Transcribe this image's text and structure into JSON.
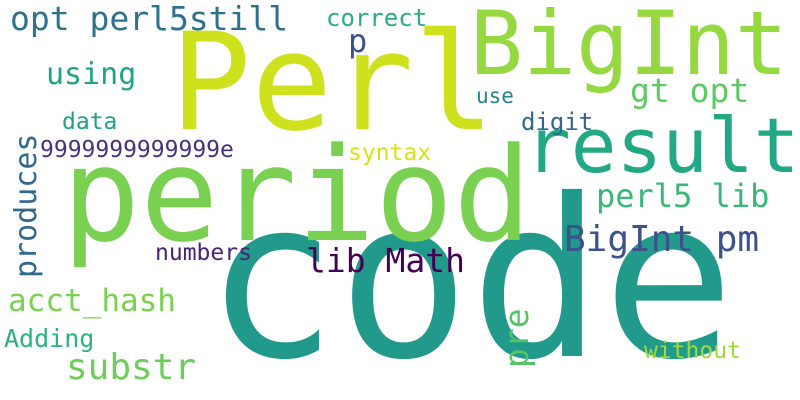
{
  "word_cloud": {
    "words": {
      "code": "code",
      "period": "period",
      "perl": "Perl",
      "bigint": "BigInt",
      "result": "result",
      "opt_perl5still": "opt perl5still",
      "correct": "correct",
      "p": "p",
      "using": "using",
      "gt_opt": "gt opt",
      "use": "use",
      "data": "data",
      "digit": "digit",
      "nines": "9999999999999e",
      "syntax": "syntax",
      "perl5_lib": "perl5 lib",
      "bigint_pm": "BigInt pm",
      "numbers": "numbers",
      "lib_math": "lib Math",
      "acct_hash": "acct_hash",
      "adding": "Adding",
      "without": "without",
      "substr": "substr",
      "produces": "produces",
      "pre": "pre"
    },
    "colors": {
      "background": "#ffffff",
      "palette": [
        "#440154",
        "#482475",
        "#3b528b",
        "#31688e",
        "#2c728e",
        "#25858e",
        "#21998b",
        "#1fa187",
        "#22a884",
        "#29af7f",
        "#37b878",
        "#52c569",
        "#6ccd5a",
        "#7ad151",
        "#95d840",
        "#a0da39",
        "#cde11d",
        "#d8e219"
      ]
    }
  }
}
